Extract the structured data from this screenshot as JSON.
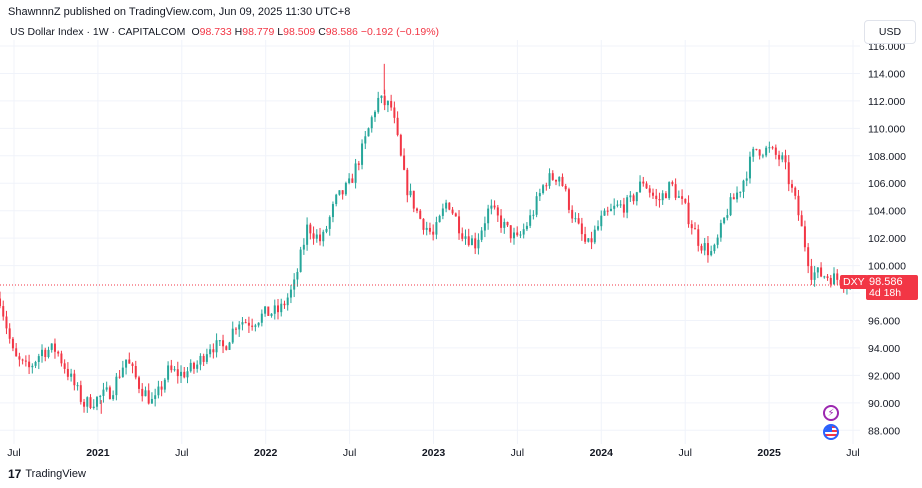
{
  "header": {
    "attribution": "ShawnnnZ published on TradingView.com, Jun 09, 2025 11:30 UTC+8",
    "symbol": "US Dollar Index · 1W · CAPITALCOM",
    "o_label": "O",
    "o_value": "98.733",
    "h_label": "H",
    "h_value": "98.779",
    "l_label": "L",
    "l_value": "98.509",
    "c_label": "C",
    "c_value": "98.586",
    "change": "−0.192 (−0.19%)"
  },
  "currency_button": "USD",
  "price_axis": {
    "ticks": [
      "88.000",
      "90.000",
      "92.000",
      "94.000",
      "96.000",
      "98.000",
      "100.000",
      "102.000",
      "104.000",
      "106.000",
      "108.000",
      "110.000",
      "112.000",
      "114.000",
      "116.000"
    ]
  },
  "time_axis": {
    "labels": [
      "Jul",
      "2021",
      "Jul",
      "2022",
      "Jul",
      "2023",
      "Jul",
      "2024",
      "Jul",
      "2025",
      "Jul"
    ]
  },
  "last_price": {
    "ticker": "DXY",
    "price": "98.586",
    "countdown": "4d 18h"
  },
  "branding": {
    "logo_text": "TradingView"
  },
  "colors": {
    "up": "#26a69a",
    "down": "#f23645",
    "grid": "#f0f3fa",
    "axis_text": "#131722"
  },
  "icons": {
    "event_1": "lightning-icon",
    "event_2": "us-flag-icon"
  },
  "chart_data": {
    "type": "candlestick",
    "title": "US Dollar Index · 1W · CAPITALCOM",
    "ylim": [
      87,
      116
    ],
    "time_range": [
      "2020-06",
      "2025-07"
    ],
    "close_path": [
      [
        "2020-06",
        97.6
      ],
      [
        "2020-07",
        93.3
      ],
      [
        "2020-08",
        92.4
      ],
      [
        "2020-09",
        93.8
      ],
      [
        "2020-10",
        93.9
      ],
      [
        "2020-11",
        91.9
      ],
      [
        "2020-12",
        89.9
      ],
      [
        "2021-01",
        90.3
      ],
      [
        "2021-02",
        90.9
      ],
      [
        "2021-03",
        93.2
      ],
      [
        "2021-04",
        91.2
      ],
      [
        "2021-05",
        89.9
      ],
      [
        "2021-06",
        92.3
      ],
      [
        "2021-07",
        92.1
      ],
      [
        "2021-08",
        92.6
      ],
      [
        "2021-09",
        94.2
      ],
      [
        "2021-10",
        94.0
      ],
      [
        "2021-11",
        96.0
      ],
      [
        "2021-12",
        95.9
      ],
      [
        "2022-01",
        96.5
      ],
      [
        "2022-02",
        96.7
      ],
      [
        "2022-03",
        98.4
      ],
      [
        "2022-04",
        102.9
      ],
      [
        "2022-05",
        101.7
      ],
      [
        "2022-06",
        104.7
      ],
      [
        "2022-07",
        105.9
      ],
      [
        "2022-08",
        108.7
      ],
      [
        "2022-09",
        112.1
      ],
      [
        "2022-10",
        111.5
      ],
      [
        "2022-11",
        105.9
      ],
      [
        "2022-12",
        103.5
      ],
      [
        "2023-01",
        102.1
      ],
      [
        "2023-02",
        104.8
      ],
      [
        "2023-03",
        102.5
      ],
      [
        "2023-04",
        101.6
      ],
      [
        "2023-05",
        104.2
      ],
      [
        "2023-06",
        102.9
      ],
      [
        "2023-07",
        101.8
      ],
      [
        "2023-08",
        103.6
      ],
      [
        "2023-09",
        106.2
      ],
      [
        "2023-10",
        106.6
      ],
      [
        "2023-11",
        103.5
      ],
      [
        "2023-12",
        101.3
      ],
      [
        "2024-01",
        103.3
      ],
      [
        "2024-02",
        104.2
      ],
      [
        "2024-03",
        104.5
      ],
      [
        "2024-04",
        106.2
      ],
      [
        "2024-05",
        104.6
      ],
      [
        "2024-06",
        105.9
      ],
      [
        "2024-07",
        104.1
      ],
      [
        "2024-08",
        101.7
      ],
      [
        "2024-09",
        100.8
      ],
      [
        "2024-10",
        104.0
      ],
      [
        "2024-11",
        105.8
      ],
      [
        "2024-12",
        108.5
      ],
      [
        "2025-01",
        108.4
      ],
      [
        "2025-02",
        107.6
      ],
      [
        "2025-03",
        104.2
      ],
      [
        "2025-04",
        99.5
      ],
      [
        "2025-05",
        99.3
      ],
      [
        "2025-06",
        98.586
      ]
    ],
    "extremes": {
      "high": [
        "2022-09",
        114.7
      ],
      "low": [
        "2021-01",
        89.2
      ]
    },
    "last": {
      "open": 98.733,
      "high": 98.779,
      "low": 98.509,
      "close": 98.586
    }
  }
}
